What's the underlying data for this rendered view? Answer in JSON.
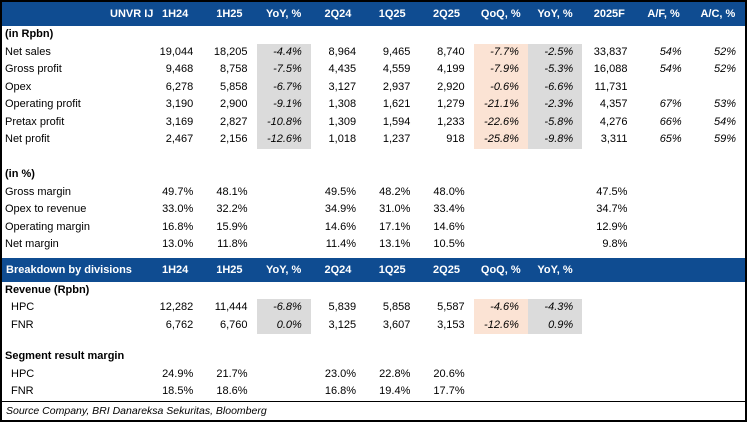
{
  "colors": {
    "header_bg": "#0F4C91",
    "header_text": "#FFFFFF",
    "gray_shade": "#DBDBDB",
    "peach_shade": "#FBE3D4",
    "border": "#000000"
  },
  "header1": {
    "label": "UNVR IJ",
    "columns": [
      "1H24",
      "1H25",
      "YoY, %",
      "2Q24",
      "1Q25",
      "2Q25",
      "QoQ, %",
      "YoY, %",
      "2025F",
      "A/F, %",
      "A/C, %"
    ]
  },
  "header2": {
    "label": "Breakdown by divisions",
    "columns": [
      "1H24",
      "1H25",
      "YoY, %",
      "2Q24",
      "1Q25",
      "2Q25",
      "QoQ, %",
      "YoY, %",
      "",
      "",
      ""
    ]
  },
  "style_rules": {
    "gray_cols": [
      2,
      7
    ],
    "peach_cols": [
      6
    ],
    "italic_cols": [
      2,
      6,
      7,
      9,
      10
    ]
  },
  "rows": [
    {
      "t": "label",
      "label": "(in Rpbn)"
    },
    {
      "t": "data",
      "label": "Net sales",
      "cells": [
        "19,044",
        "18,205",
        "-4.4%",
        "8,964",
        "9,465",
        "8,740",
        "-7.7%",
        "-2.5%",
        "33,837",
        "54%",
        "52%"
      ]
    },
    {
      "t": "data",
      "label": "Gross profit",
      "cells": [
        "9,468",
        "8,758",
        "-7.5%",
        "4,435",
        "4,559",
        "4,199",
        "-7.9%",
        "-5.3%",
        "16,088",
        "54%",
        "52%"
      ]
    },
    {
      "t": "data",
      "label": "Opex",
      "cells": [
        "6,278",
        "5,858",
        "-6.7%",
        "3,127",
        "2,937",
        "2,920",
        "-0.6%",
        "-6.6%",
        "11,731",
        "",
        ""
      ]
    },
    {
      "t": "data",
      "label": "Operating profit",
      "cells": [
        "3,190",
        "2,900",
        "-9.1%",
        "1,308",
        "1,621",
        "1,279",
        "-21.1%",
        "-2.3%",
        "4,357",
        "67%",
        "53%"
      ]
    },
    {
      "t": "data",
      "label": "Pretax profit",
      "cells": [
        "3,169",
        "2,827",
        "-10.8%",
        "1,309",
        "1,594",
        "1,233",
        "-22.6%",
        "-5.8%",
        "4,276",
        "66%",
        "54%"
      ]
    },
    {
      "t": "data",
      "label": "Net profit",
      "cells": [
        "2,467",
        "2,156",
        "-12.6%",
        "1,018",
        "1,237",
        "918",
        "-25.8%",
        "-9.8%",
        "3,311",
        "65%",
        "59%"
      ]
    },
    {
      "t": "spacer",
      "h": 17.5
    },
    {
      "t": "label",
      "label": "(in %)"
    },
    {
      "t": "data",
      "label": "Gross margin",
      "cells": [
        "49.7%",
        "48.1%",
        "",
        "49.5%",
        "48.2%",
        "48.0%",
        "",
        "",
        "47.5%",
        "",
        ""
      ]
    },
    {
      "t": "data",
      "label": "Opex to revenue",
      "cells": [
        "33.0%",
        "32.2%",
        "",
        "34.9%",
        "31.0%",
        "33.4%",
        "",
        "",
        "34.7%",
        "",
        ""
      ]
    },
    {
      "t": "data",
      "label": "Operating margin",
      "cells": [
        "16.8%",
        "15.9%",
        "",
        "14.6%",
        "17.1%",
        "14.6%",
        "",
        "",
        "12.9%",
        "",
        ""
      ]
    },
    {
      "t": "data",
      "label": "Net margin",
      "cells": [
        "13.0%",
        "11.8%",
        "",
        "11.4%",
        "13.1%",
        "10.5%",
        "",
        "",
        "9.8%",
        "",
        ""
      ]
    },
    {
      "t": "spacer",
      "h": 4
    },
    {
      "t": "header2"
    },
    {
      "t": "label",
      "label": "Revenue (Rpbn)"
    },
    {
      "t": "data",
      "indent": true,
      "label": "HPC",
      "cells": [
        "12,282",
        "11,444",
        "-6.8%",
        "5,839",
        "5,858",
        "5,587",
        "-4.6%",
        "-4.3%",
        "",
        "",
        ""
      ]
    },
    {
      "t": "data",
      "indent": true,
      "label": "FNR",
      "cells": [
        "6,762",
        "6,760",
        "0.0%",
        "3,125",
        "3,607",
        "3,153",
        "-12.6%",
        "0.9%",
        "",
        "",
        ""
      ]
    },
    {
      "t": "spacer",
      "h": 14
    },
    {
      "t": "label",
      "label": "Segment result margin"
    },
    {
      "t": "data",
      "indent": true,
      "label": "HPC",
      "cells": [
        "24.9%",
        "21.7%",
        "",
        "23.0%",
        "22.8%",
        "20.6%",
        "",
        "",
        "",
        "",
        ""
      ]
    },
    {
      "t": "data",
      "indent": true,
      "label": "FNR",
      "cells": [
        "18.5%",
        "18.6%",
        "",
        "16.8%",
        "19.4%",
        "17.7%",
        "",
        "",
        "",
        "",
        ""
      ]
    }
  ],
  "source": "Source Company, BRI Danareksa Sekuritas, Bloomberg"
}
